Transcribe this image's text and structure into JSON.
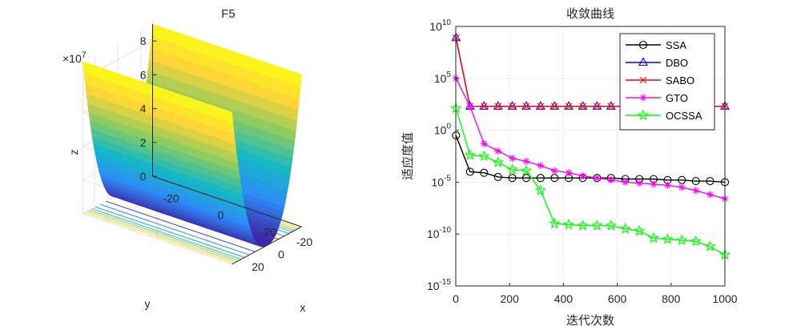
{
  "chart_data": [
    {
      "type": "surface",
      "title": "F5",
      "xlabel": "x",
      "ylabel": "y",
      "zlabel": "z",
      "z_exponent_label": "×10",
      "z_exponent_power": "7",
      "x_ticks": [
        "-20",
        "0",
        "20"
      ],
      "y_ticks": [
        "-20",
        "0",
        "20"
      ],
      "z_ticks": [
        "0",
        "2",
        "4",
        "6",
        "8"
      ],
      "xlim": [
        -30,
        30
      ],
      "ylim": [
        -30,
        30
      ],
      "zlim": [
        0,
        90000000
      ],
      "colormap": [
        "#3e26a8",
        "#2d8cf8",
        "#15b9c3",
        "#86cb63",
        "#fcd339",
        "#f9fb15"
      ],
      "grid": true
    },
    {
      "type": "line",
      "title": "收敛曲线",
      "xlabel": "迭代次数",
      "ylabel": "适应度值",
      "yscale": "log",
      "xlim": [
        0,
        1000
      ],
      "ylim_exp": [
        -15,
        10
      ],
      "x_ticks": [
        "0",
        "200",
        "400",
        "600",
        "800",
        "1000"
      ],
      "y_tick_base": "10",
      "y_tick_exps": [
        "10",
        "5",
        "0",
        "-5",
        "-10",
        "-15"
      ],
      "grid": true,
      "legend_position": "top-right",
      "x": [
        1,
        53,
        105,
        157,
        210,
        262,
        315,
        367,
        420,
        472,
        525,
        577,
        630,
        682,
        735,
        787,
        840,
        892,
        945,
        1000
      ],
      "series": [
        {
          "name": "SSA",
          "color": "#000000",
          "marker": "circle",
          "log10_values": [
            -0.5,
            -4.0,
            -4.1,
            -4.5,
            -4.6,
            -4.6,
            -4.6,
            -4.6,
            -4.6,
            -4.6,
            -4.6,
            -4.6,
            -4.7,
            -4.7,
            -4.7,
            -4.8,
            -4.8,
            -4.9,
            -4.9,
            -5.0
          ]
        },
        {
          "name": "DBO",
          "color": "#0000ff",
          "marker": "triangle",
          "log10_values": [
            8.9,
            2.3,
            2.3,
            2.3,
            2.3,
            2.3,
            2.3,
            2.3,
            2.3,
            2.3,
            2.3,
            2.3,
            2.3,
            2.3,
            2.3,
            2.3,
            2.3,
            2.3,
            2.3,
            2.3
          ]
        },
        {
          "name": "SABO",
          "color": "#ff0000",
          "marker": "x",
          "log10_values": [
            8.9,
            2.3,
            2.3,
            2.3,
            2.3,
            2.3,
            2.3,
            2.3,
            2.3,
            2.3,
            2.3,
            2.3,
            2.3,
            2.3,
            2.3,
            2.3,
            2.3,
            2.3,
            2.3,
            2.3
          ]
        },
        {
          "name": "GTO",
          "color": "#ff00ff",
          "marker": "star",
          "log10_values": [
            5.0,
            2.3,
            -1.3,
            -2.0,
            -2.7,
            -3.0,
            -3.4,
            -3.9,
            -4.1,
            -4.4,
            -4.6,
            -4.8,
            -5.0,
            -5.1,
            -5.2,
            -5.3,
            -5.5,
            -5.8,
            -6.2,
            -6.6
          ]
        },
        {
          "name": "OCSSA",
          "color": "#00ff00",
          "marker": "pentagram",
          "log10_values": [
            2.1,
            -2.4,
            -2.5,
            -3.1,
            -3.8,
            -3.9,
            -5.8,
            -9.0,
            -9.1,
            -9.2,
            -9.2,
            -9.2,
            -9.5,
            -9.7,
            -10.4,
            -10.5,
            -10.6,
            -10.7,
            -11.2,
            -12.0
          ]
        }
      ]
    }
  ]
}
